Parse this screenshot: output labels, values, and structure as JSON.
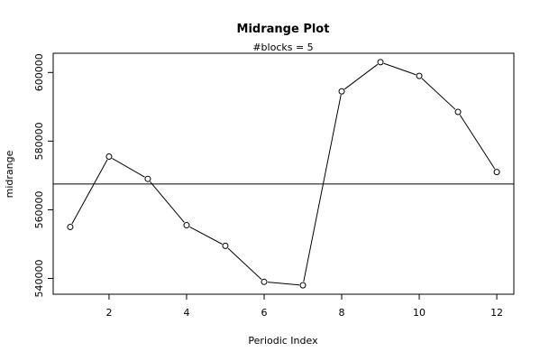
{
  "chart_data": {
    "type": "line",
    "title": "Midrange Plot",
    "subtitle": "#blocks =  5",
    "xlabel": "Periodic Index",
    "ylabel": "midrange",
    "x": [
      1,
      2,
      3,
      4,
      5,
      6,
      7,
      8,
      9,
      10,
      11,
      12
    ],
    "values": [
      555000,
      575500,
      569000,
      555500,
      549500,
      539000,
      538000,
      594500,
      603000,
      599000,
      588500,
      571000
    ],
    "reference_line": 567500,
    "xlim": [
      0.56,
      12.44
    ],
    "ylim": [
      535400,
      605600
    ],
    "x_ticks": [
      2,
      4,
      6,
      8,
      10,
      12
    ],
    "x_tick_labels": [
      "2",
      "4",
      "6",
      "8",
      "10",
      "12"
    ],
    "y_ticks": [
      540000,
      560000,
      580000,
      600000
    ],
    "y_tick_labels": [
      "540000",
      "560000",
      "580000",
      "600000"
    ],
    "grid": false,
    "markers": "open-circle",
    "line_color": "#000000"
  }
}
